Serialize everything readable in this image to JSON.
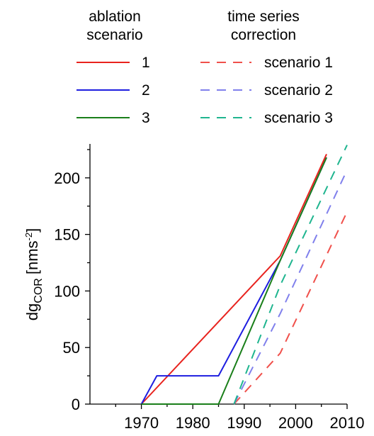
{
  "legend": {
    "ablation_header": [
      "ablation",
      "scenario"
    ],
    "correction_header": [
      "time series",
      "correction"
    ],
    "ablation_items": [
      "1",
      "2",
      "3"
    ],
    "correction_items": [
      "scenario 1",
      "scenario 2",
      "scenario 3"
    ]
  },
  "colors": {
    "scenario_1": "#e8231e",
    "scenario_2": "#1e1ee0",
    "scenario_3": "#1a7f1a",
    "correction_1": "#f0504b",
    "correction_2": "#8080ec",
    "correction_3": "#1fb58f"
  },
  "chart_data": {
    "type": "line",
    "ylabel_main": "dg",
    "ylabel_sub": "COR",
    "ylabel_unit_open": "[nms",
    "ylabel_unit_sup": "-2",
    "ylabel_unit_close": "]",
    "xlim": [
      1960,
      2010
    ],
    "ylim": [
      0,
      230
    ],
    "xticks": [
      1970,
      1980,
      1990,
      2000,
      2010
    ],
    "yticks": [
      0,
      50,
      100,
      150,
      200
    ],
    "grid": false,
    "legend_position": "top",
    "series": [
      {
        "name": "1",
        "group": "ablation scenario",
        "style": "solid",
        "color_key": "scenario_1",
        "x": [
          1970,
          1997,
          2006
        ],
        "y": [
          0,
          131,
          221
        ]
      },
      {
        "name": "2",
        "group": "ablation scenario",
        "style": "solid",
        "color_key": "scenario_2",
        "x": [
          1970,
          1973,
          1985,
          1997,
          2006
        ],
        "y": [
          0,
          25,
          25,
          127,
          218
        ]
      },
      {
        "name": "3",
        "group": "ablation scenario",
        "style": "solid",
        "color_key": "scenario_3",
        "x": [
          1970,
          1985,
          1997,
          2006
        ],
        "y": [
          0,
          0,
          127,
          218
        ]
      },
      {
        "name": "scenario 1",
        "group": "time series correction",
        "style": "dashed",
        "color_key": "correction_1",
        "x": [
          1988,
          1997,
          2010
        ],
        "y": [
          0,
          45,
          170
        ]
      },
      {
        "name": "scenario 2",
        "group": "time series correction",
        "style": "dashed",
        "color_key": "correction_2",
        "x": [
          1988,
          1997,
          2010
        ],
        "y": [
          0,
          80,
          207
        ]
      },
      {
        "name": "scenario 3",
        "group": "time series correction",
        "style": "dashed",
        "color_key": "correction_3",
        "x": [
          1988,
          1997,
          2010
        ],
        "y": [
          0,
          105,
          229
        ]
      }
    ]
  }
}
